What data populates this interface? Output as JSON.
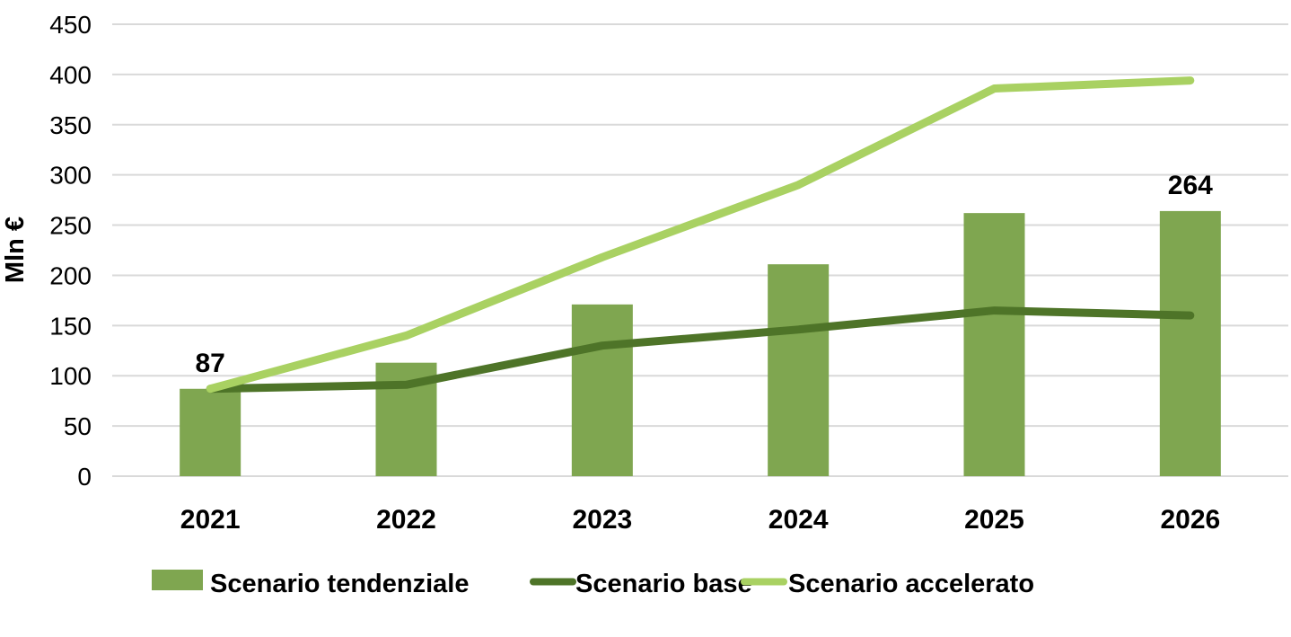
{
  "chart_data": {
    "type": "combo-bar-line",
    "title": "",
    "ylabel": "Mln €",
    "xlabel": "",
    "ylim": [
      0,
      450
    ],
    "ytick_step": 50,
    "ytick_labels": [
      "450",
      "400",
      "350",
      "300",
      "250",
      "200",
      "150",
      "100",
      "50",
      "0"
    ],
    "categories": [
      "2021",
      "2022",
      "2023",
      "2024",
      "2025",
      "2026"
    ],
    "grid": "horizontal",
    "legend_position": "bottom",
    "series": [
      {
        "name": "Scenario tendenziale",
        "type": "bar",
        "color": "#7FA650",
        "values": [
          87,
          113,
          171,
          211,
          262,
          264
        ]
      },
      {
        "name": "Scenario base",
        "type": "line",
        "color": "#4E7428",
        "values": [
          87,
          91,
          130,
          146,
          165,
          160
        ]
      },
      {
        "name": "Scenario accelerato",
        "type": "line",
        "color": "#A9D162",
        "values": [
          87,
          140,
          218,
          290,
          386,
          394
        ]
      }
    ],
    "data_labels": [
      {
        "series": "Scenario tendenziale",
        "category": "2021",
        "text": "87",
        "value": 87
      },
      {
        "series": "Scenario tendenziale",
        "category": "2026",
        "text": "264",
        "value": 264
      }
    ],
    "colors": {
      "gridline": "#D9D9D9",
      "text": "#000000"
    }
  }
}
